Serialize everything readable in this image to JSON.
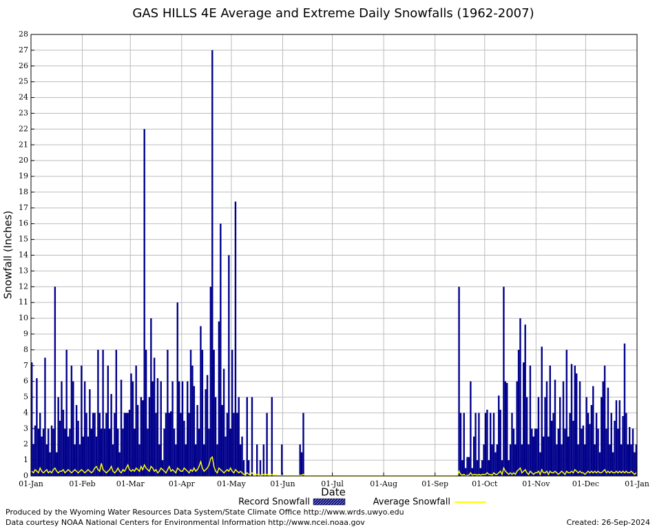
{
  "chart_data": {
    "type": "bar-line",
    "title": "GAS HILLS 4E Average and Extreme Daily Snowfalls (1962-2007)",
    "xlabel": "Date",
    "ylabel": "Snowfall (Inches)",
    "footer_left": [
      "Produced by the Wyoming Water Resources Data System/State Climate Office http://www.wrds.uwyo.edu",
      "Data courtesy NOAA National Centers for Environmental Information http://www.ncei.noaa.gov"
    ],
    "footer_right": "Created:  26-Sep-2024",
    "grid": true,
    "xlim": [
      0,
      366
    ],
    "ylim": [
      0,
      28
    ],
    "yticks": [
      0,
      1,
      2,
      3,
      4,
      5,
      6,
      7,
      8,
      9,
      10,
      11,
      12,
      13,
      14,
      15,
      16,
      17,
      18,
      19,
      20,
      21,
      22,
      23,
      24,
      25,
      26,
      27,
      28
    ],
    "xticks": [
      {
        "value": 0,
        "label": "01-Jan"
      },
      {
        "value": 31,
        "label": "01-Feb"
      },
      {
        "value": 60,
        "label": "01-Mar"
      },
      {
        "value": 91,
        "label": "01-Apr"
      },
      {
        "value": 121,
        "label": "01-May"
      },
      {
        "value": 152,
        "label": "01-Jun"
      },
      {
        "value": 182,
        "label": "01-Jul"
      },
      {
        "value": 213,
        "label": "01-Aug"
      },
      {
        "value": 244,
        "label": "01-Sep"
      },
      {
        "value": 274,
        "label": "01-Oct"
      },
      {
        "value": 305,
        "label": "01-Nov"
      },
      {
        "value": 335,
        "label": "01-Dec"
      },
      {
        "value": 366,
        "label": "01-Jan"
      }
    ],
    "x": [
      0,
      1,
      2,
      3,
      4,
      5,
      6,
      7,
      8,
      9,
      10,
      11,
      12,
      13,
      14,
      15,
      16,
      17,
      18,
      19,
      20,
      21,
      22,
      23,
      24,
      25,
      26,
      27,
      28,
      29,
      30,
      31,
      32,
      33,
      34,
      35,
      36,
      37,
      38,
      39,
      40,
      41,
      42,
      43,
      44,
      45,
      46,
      47,
      48,
      49,
      50,
      51,
      52,
      53,
      54,
      55,
      56,
      57,
      58,
      59,
      60,
      61,
      62,
      63,
      64,
      65,
      66,
      67,
      68,
      69,
      70,
      71,
      72,
      73,
      74,
      75,
      76,
      77,
      78,
      79,
      80,
      81,
      82,
      83,
      84,
      85,
      86,
      87,
      88,
      89,
      90,
      91,
      92,
      93,
      94,
      95,
      96,
      97,
      98,
      99,
      100,
      101,
      102,
      103,
      104,
      105,
      106,
      107,
      108,
      109,
      110,
      111,
      112,
      113,
      114,
      115,
      116,
      117,
      118,
      119,
      120,
      121,
      122,
      123,
      124,
      125,
      126,
      127,
      128,
      129,
      130,
      131,
      132,
      133,
      134,
      135,
      136,
      137,
      138,
      139,
      140,
      141,
      142,
      143,
      144,
      145,
      146,
      147,
      148,
      149,
      150,
      151,
      152,
      153,
      154,
      155,
      156,
      157,
      158,
      159,
      160,
      161,
      162,
      163,
      164,
      165,
      166,
      167,
      168,
      169,
      170,
      171,
      172,
      173,
      174,
      175,
      176,
      177,
      178,
      179,
      180,
      181,
      182,
      183,
      184,
      185,
      186,
      187,
      188,
      189,
      190,
      191,
      192,
      193,
      194,
      195,
      196,
      197,
      198,
      199,
      200,
      201,
      202,
      203,
      204,
      205,
      206,
      207,
      208,
      209,
      210,
      211,
      212,
      213,
      214,
      215,
      216,
      217,
      218,
      219,
      220,
      221,
      222,
      223,
      224,
      225,
      226,
      227,
      228,
      229,
      230,
      231,
      232,
      233,
      234,
      235,
      236,
      237,
      238,
      239,
      240,
      241,
      242,
      243,
      244,
      245,
      246,
      247,
      248,
      249,
      250,
      251,
      252,
      253,
      254,
      255,
      256,
      257,
      258,
      259,
      260,
      261,
      262,
      263,
      264,
      265,
      266,
      267,
      268,
      269,
      270,
      271,
      272,
      273,
      274,
      275,
      276,
      277,
      278,
      279,
      280,
      281,
      282,
      283,
      284,
      285,
      286,
      287,
      288,
      289,
      290,
      291,
      292,
      293,
      294,
      295,
      296,
      297,
      298,
      299,
      300,
      301,
      302,
      303,
      304,
      305,
      306,
      307,
      308,
      309,
      310,
      311,
      312,
      313,
      314,
      315,
      316,
      317,
      318,
      319,
      320,
      321,
      322,
      323,
      324,
      325,
      326,
      327,
      328,
      329,
      330,
      331,
      332,
      333,
      334,
      335,
      336,
      337,
      338,
      339,
      340,
      341,
      342,
      343,
      344,
      345,
      346,
      347,
      348,
      349,
      350,
      351,
      352,
      353,
      354,
      355,
      356,
      357,
      358,
      359,
      360,
      361,
      362,
      363,
      364,
      365
    ],
    "series": [
      {
        "name": "Record Snowfall",
        "color": "#00008b",
        "values": [
          7.2,
          2,
          3.2,
          6.2,
          3,
          4,
          2.5,
          3,
          7.5,
          2,
          3,
          1.5,
          3.2,
          3,
          12,
          1.5,
          5,
          3.5,
          6,
          4.2,
          3,
          8,
          2.5,
          3,
          7,
          6,
          2,
          4.5,
          3.5,
          2,
          7,
          2.5,
          6,
          4,
          2.5,
          5.5,
          3,
          4,
          4,
          2.5,
          8,
          4,
          3,
          8,
          3,
          4,
          7,
          3,
          5.2,
          2,
          4,
          8,
          3,
          1.5,
          6.1,
          3,
          4,
          4,
          4,
          4.2,
          6.5,
          6,
          3,
          7,
          4.5,
          2,
          5,
          4.8,
          22,
          8,
          3,
          5,
          10,
          6,
          7.5,
          4,
          6.2,
          2,
          6,
          1,
          3,
          4,
          8,
          4,
          4.1,
          6,
          3,
          2,
          11,
          6,
          4,
          6,
          3.5,
          2,
          6,
          4,
          8,
          7,
          5.7,
          2,
          4.5,
          3,
          9.5,
          8,
          2,
          5.5,
          6.4,
          3,
          12,
          27,
          8,
          5,
          2,
          9.8,
          16,
          4.5,
          6.8,
          2.5,
          4,
          14,
          3,
          8,
          4,
          17.4,
          4,
          5,
          2,
          2.5,
          1,
          0,
          5,
          1,
          0,
          5,
          0,
          0,
          2,
          0,
          1,
          0,
          2,
          0,
          4,
          0,
          0,
          5,
          0,
          0,
          0,
          0,
          0,
          2,
          0,
          0,
          0,
          0,
          0,
          0,
          0,
          0,
          0,
          0,
          2,
          1.5,
          4,
          0,
          0,
          0,
          0,
          0,
          0,
          0,
          0,
          0,
          0,
          0,
          0,
          0,
          0,
          0,
          0,
          0,
          0,
          0,
          0,
          0,
          0,
          0,
          0,
          0,
          0,
          0,
          0,
          0,
          0,
          0,
          0,
          0,
          0,
          0,
          0,
          0,
          0,
          0,
          0,
          0,
          0,
          0,
          0,
          0,
          0,
          0,
          0,
          0,
          0,
          0,
          0,
          0,
          0,
          0,
          0,
          0,
          0,
          0,
          0,
          0,
          0,
          0,
          0,
          0,
          0,
          0,
          0,
          0,
          0,
          0,
          0,
          0,
          0,
          0,
          0,
          0,
          0,
          0,
          0,
          0,
          0,
          0,
          0,
          0,
          0,
          0,
          0,
          0,
          0,
          0,
          0,
          0,
          12,
          4,
          1,
          4,
          0.5,
          1.2,
          1.2,
          6,
          0.5,
          2.5,
          4,
          1,
          4,
          0.5,
          1,
          2,
          4,
          4.2,
          1,
          4,
          2,
          4,
          1.5,
          2,
          5.1,
          4.2,
          1,
          12,
          6,
          5.9,
          1,
          2,
          4,
          3,
          2,
          6,
          8,
          10,
          2,
          7.2,
          9.6,
          5,
          2,
          7,
          3,
          2.5,
          3,
          3,
          5,
          1.5,
          8.2,
          2.5,
          5,
          6,
          2.5,
          7,
          3.5,
          4,
          6.1,
          2,
          3,
          5,
          2,
          6,
          3,
          8,
          2.5,
          4,
          7.1,
          3.5,
          7,
          6.5,
          2,
          6,
          3,
          3.2,
          2,
          5,
          4,
          3.3,
          4.5,
          5.7,
          2,
          4,
          3,
          1.5,
          5,
          6,
          7,
          3,
          5.6,
          2,
          4,
          1.5,
          3.5,
          4.8,
          3,
          4.8,
          2,
          3.8,
          8.4,
          4,
          2,
          3.1,
          2,
          3,
          1.5,
          2
        ]
      },
      {
        "name": "Average Snowfall",
        "color": "#ffff00",
        "values": [
          0.3,
          0.2,
          0.4,
          0.3,
          0.2,
          0.5,
          0.3,
          0.2,
          0.3,
          0.4,
          0.2,
          0.3,
          0.2,
          0.4,
          0.5,
          0.3,
          0.2,
          0.3,
          0.3,
          0.4,
          0.2,
          0.3,
          0.4,
          0.3,
          0.2,
          0.3,
          0.4,
          0.3,
          0.2,
          0.3,
          0.4,
          0.3,
          0.2,
          0.3,
          0.4,
          0.3,
          0.2,
          0.3,
          0.5,
          0.6,
          0.4,
          0.3,
          0.8,
          0.4,
          0.3,
          0.2,
          0.3,
          0.4,
          0.6,
          0.3,
          0.2,
          0.3,
          0.5,
          0.3,
          0.2,
          0.4,
          0.3,
          0.5,
          0.7,
          0.4,
          0.3,
          0.4,
          0.3,
          0.5,
          0.4,
          0.3,
          0.6,
          0.4,
          0.7,
          0.5,
          0.4,
          0.3,
          0.6,
          0.5,
          0.3,
          0.4,
          0.2,
          0.3,
          0.5,
          0.4,
          0.3,
          0.2,
          0.4,
          0.6,
          0.3,
          0.4,
          0.3,
          0.2,
          0.5,
          0.4,
          0.3,
          0.3,
          0.5,
          0.4,
          0.3,
          0.2,
          0.4,
          0.3,
          0.5,
          0.3,
          0.4,
          0.6,
          0.9,
          0.5,
          0.3,
          0.4,
          0.5,
          0.7,
          1.1,
          1.2,
          0.6,
          0.3,
          0.2,
          0.5,
          0.4,
          0.3,
          0.2,
          0.3,
          0.4,
          0.3,
          0.5,
          0.3,
          0.2,
          0.4,
          0.3,
          0.2,
          0.3,
          0.2,
          0.1,
          0.1,
          0.2,
          0.1,
          0.1,
          0.2,
          0.1,
          0.1,
          0.1,
          0.1,
          0.05,
          0.05,
          0.1,
          0.05,
          0.1,
          0.05,
          0.05,
          0.1,
          0.05,
          0.05,
          0.05,
          0,
          0,
          0.05,
          0,
          0,
          0,
          0,
          0,
          0,
          0,
          0,
          0,
          0,
          0.05,
          0.05,
          0.1,
          0,
          0,
          0,
          0,
          0,
          0,
          0,
          0,
          0,
          0,
          0,
          0,
          0,
          0,
          0,
          0,
          0,
          0,
          0,
          0,
          0,
          0,
          0,
          0,
          0,
          0,
          0,
          0,
          0,
          0,
          0,
          0,
          0,
          0,
          0,
          0,
          0,
          0,
          0,
          0,
          0,
          0,
          0,
          0,
          0,
          0,
          0,
          0,
          0,
          0,
          0,
          0,
          0,
          0,
          0,
          0,
          0,
          0,
          0,
          0,
          0,
          0,
          0,
          0,
          0,
          0,
          0,
          0,
          0,
          0,
          0,
          0,
          0,
          0,
          0,
          0,
          0,
          0,
          0,
          0,
          0,
          0,
          0,
          0,
          0,
          0,
          0,
          0,
          0,
          0,
          0,
          0,
          0,
          0.3,
          0.1,
          0.05,
          0.1,
          0,
          0.05,
          0.05,
          0.2,
          0.05,
          0.1,
          0.1,
          0.05,
          0.1,
          0.05,
          0.1,
          0.1,
          0.1,
          0.2,
          0.1,
          0.1,
          0.05,
          0.2,
          0.1,
          0.1,
          0.2,
          0.3,
          0.1,
          0.5,
          0.3,
          0.2,
          0.1,
          0.2,
          0.1,
          0.2,
          0.1,
          0.3,
          0.4,
          0.5,
          0.2,
          0.3,
          0.4,
          0.2,
          0.1,
          0.3,
          0.2,
          0.1,
          0.2,
          0.2,
          0.3,
          0.1,
          0.4,
          0.2,
          0.2,
          0.3,
          0.1,
          0.3,
          0.2,
          0.2,
          0.3,
          0.2,
          0.1,
          0.2,
          0.3,
          0.2,
          0.1,
          0.3,
          0.2,
          0.2,
          0.3,
          0.2,
          0.4,
          0.3,
          0.2,
          0.3,
          0.2,
          0.2,
          0.1,
          0.2,
          0.3,
          0.2,
          0.3,
          0.2,
          0.3,
          0.2,
          0.3,
          0.2,
          0.2,
          0.3,
          0.4,
          0.2,
          0.3,
          0.2,
          0.3,
          0.2,
          0.2,
          0.3,
          0.2,
          0.3,
          0.2,
          0.3,
          0.2,
          0.3,
          0.2,
          0.2,
          0.3,
          0.2,
          0.1,
          0.2
        ]
      }
    ]
  }
}
